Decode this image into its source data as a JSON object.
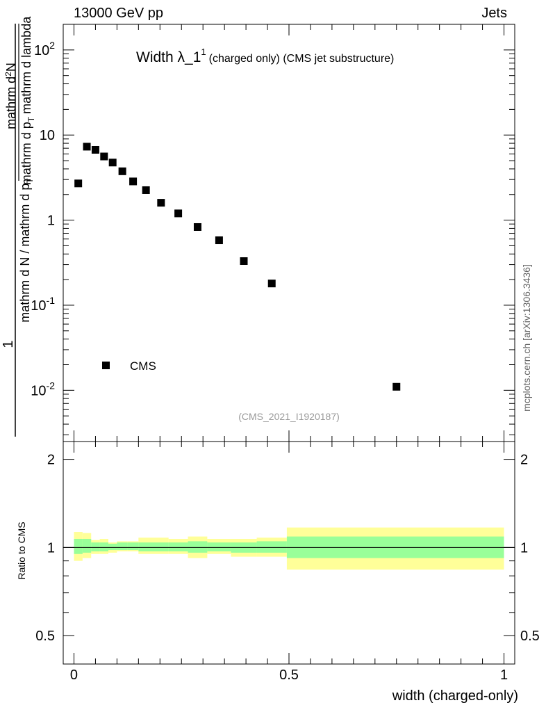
{
  "header": {
    "energy_label": "13000 GeV pp",
    "category_label": "Jets"
  },
  "main_panel": {
    "title_main": "Width λ_1",
    "title_sup": "1",
    "title_sub": "(charged only) (CMS jet substructure)",
    "ylabel_prefix": "1",
    "ylabel_denominator": "mathrm d N / mathrm d p",
    "ylabel_numerator": "mathrm d",
    "ylabel_numerator_sup": "2",
    "ylabel_numerator_n": "N",
    "ylabel_lower": "mathrm d p",
    "ylabel_lower_sub": "T",
    "ylabel_lower_rest": "mathrm d lambda",
    "watermark": "(CMS_2021_I1920187)",
    "side_label": "mcplots.cern.ch [arXiv:1306.3436]",
    "legend_label": "CMS"
  },
  "ratio_panel": {
    "ylabel": "Ratio to CMS",
    "xlabel": "width (charged-only)"
  },
  "colors": {
    "marker": "#000000",
    "band_inner": "#99ff99",
    "band_outer": "#ffff99",
    "watermark": "#999999",
    "side_label": "#666666"
  },
  "chart_data": [
    {
      "type": "scatter",
      "series": [
        {
          "name": "CMS",
          "x": [
            0.01,
            0.03,
            0.05,
            0.07,
            0.09,
            0.1125,
            0.1375,
            0.1675,
            0.2025,
            0.2425,
            0.2875,
            0.3375,
            0.395,
            0.46,
            0.75
          ],
          "y": [
            2.7,
            7.3,
            6.7,
            5.6,
            4.75,
            3.75,
            2.85,
            2.25,
            1.6,
            1.2,
            0.83,
            0.58,
            0.33,
            0.18,
            0.011
          ]
        }
      ],
      "yscale": "log",
      "ylim": [
        0.0025,
        200
      ],
      "xlim": [
        -0.025,
        1.025
      ],
      "yticks": [
        0.01,
        0.1,
        1,
        10,
        100
      ],
      "ytick_labels": [
        "10^-2",
        "10^-1",
        "1",
        "10",
        "10^2"
      ]
    },
    {
      "type": "area",
      "xlabel": "width (charged-only)",
      "ylabel": "Ratio to CMS",
      "yscale": "log",
      "ylim": [
        0.4,
        2.3
      ],
      "xlim": [
        -0.025,
        1.025
      ],
      "yticks": [
        0.5,
        1,
        2
      ],
      "ytick_labels": [
        "0.5",
        "1",
        "2"
      ],
      "xticks": [
        0,
        0.5,
        1
      ],
      "xtick_labels": [
        "0",
        "0.5",
        "1"
      ],
      "bins": [
        {
          "lo": 0.0,
          "hi": 0.02,
          "inner": [
            0.95,
            1.07
          ],
          "outer": [
            0.9,
            1.13
          ]
        },
        {
          "lo": 0.02,
          "hi": 0.04,
          "inner": [
            0.96,
            1.07
          ],
          "outer": [
            0.92,
            1.12
          ]
        },
        {
          "lo": 0.04,
          "hi": 0.06,
          "inner": [
            0.97,
            1.04
          ],
          "outer": [
            0.95,
            1.06
          ]
        },
        {
          "lo": 0.06,
          "hi": 0.08,
          "inner": [
            0.97,
            1.04
          ],
          "outer": [
            0.95,
            1.07
          ]
        },
        {
          "lo": 0.08,
          "hi": 0.1,
          "inner": [
            0.98,
            1.03
          ],
          "outer": [
            0.96,
            1.04
          ]
        },
        {
          "lo": 0.1,
          "hi": 0.125,
          "inner": [
            0.98,
            1.04
          ],
          "outer": [
            0.97,
            1.05
          ]
        },
        {
          "lo": 0.125,
          "hi": 0.15,
          "inner": [
            0.98,
            1.04
          ],
          "outer": [
            0.97,
            1.05
          ]
        },
        {
          "lo": 0.15,
          "hi": 0.185,
          "inner": [
            0.97,
            1.04
          ],
          "outer": [
            0.95,
            1.08
          ]
        },
        {
          "lo": 0.185,
          "hi": 0.22,
          "inner": [
            0.97,
            1.04
          ],
          "outer": [
            0.95,
            1.08
          ]
        },
        {
          "lo": 0.22,
          "hi": 0.265,
          "inner": [
            0.97,
            1.04
          ],
          "outer": [
            0.95,
            1.07
          ]
        },
        {
          "lo": 0.265,
          "hi": 0.31,
          "inner": [
            0.96,
            1.05
          ],
          "outer": [
            0.92,
            1.09
          ]
        },
        {
          "lo": 0.31,
          "hi": 0.365,
          "inner": [
            0.97,
            1.04
          ],
          "outer": [
            0.95,
            1.07
          ]
        },
        {
          "lo": 0.365,
          "hi": 0.425,
          "inner": [
            0.96,
            1.04
          ],
          "outer": [
            0.93,
            1.07
          ]
        },
        {
          "lo": 0.425,
          "hi": 0.495,
          "inner": [
            0.96,
            1.05
          ],
          "outer": [
            0.93,
            1.08
          ]
        },
        {
          "lo": 0.495,
          "hi": 1.0,
          "inner": [
            0.92,
            1.09
          ],
          "outer": [
            0.84,
            1.17
          ]
        }
      ]
    }
  ]
}
